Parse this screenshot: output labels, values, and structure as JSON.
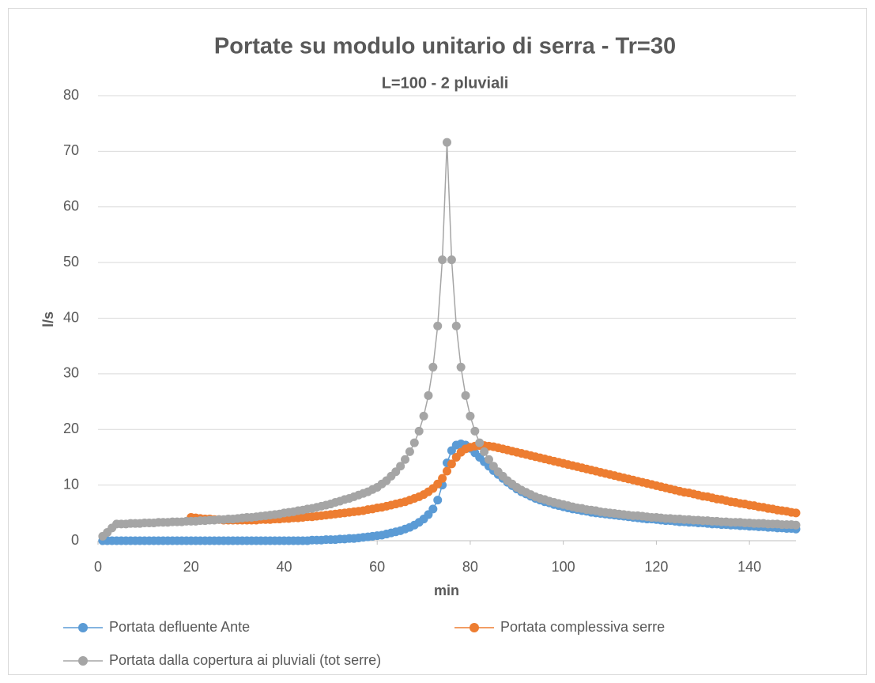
{
  "chart_data": {
    "type": "line",
    "title": "Portate su modulo unitario di serra - Tr=30",
    "subtitle": "L=100 - 2 pluviali",
    "x_label": "min",
    "y_label": "l/s",
    "x": [
      1,
      2,
      3,
      4,
      5,
      6,
      7,
      8,
      9,
      10,
      11,
      12,
      13,
      14,
      15,
      16,
      17,
      18,
      19,
      20,
      21,
      22,
      23,
      24,
      25,
      26,
      27,
      28,
      29,
      30,
      31,
      32,
      33,
      34,
      35,
      36,
      37,
      38,
      39,
      40,
      41,
      42,
      43,
      44,
      45,
      46,
      47,
      48,
      49,
      50,
      51,
      52,
      53,
      54,
      55,
      56,
      57,
      58,
      59,
      60,
      61,
      62,
      63,
      64,
      65,
      66,
      67,
      68,
      69,
      70,
      71,
      72,
      73,
      74,
      75,
      76,
      77,
      78,
      79,
      80,
      81,
      82,
      83,
      84,
      85,
      86,
      87,
      88,
      89,
      90,
      91,
      92,
      93,
      94,
      95,
      96,
      97,
      98,
      99,
      100,
      101,
      102,
      103,
      104,
      105,
      106,
      107,
      108,
      109,
      110,
      111,
      112,
      113,
      114,
      115,
      116,
      117,
      118,
      119,
      120,
      121,
      122,
      123,
      124,
      125,
      126,
      127,
      128,
      129,
      130,
      131,
      132,
      133,
      134,
      135,
      136,
      137,
      138,
      139,
      140,
      141,
      142,
      143,
      144,
      145,
      146,
      147,
      148,
      149,
      150
    ],
    "series": [
      {
        "name": "Portata defluente Ante",
        "color": "#5b9bd5",
        "values": [
          0,
          0,
          0,
          0,
          0,
          0,
          0,
          0,
          0,
          0,
          0,
          0,
          0,
          0,
          0,
          0,
          0,
          0,
          0,
          0,
          0,
          0,
          0,
          0,
          0,
          0,
          0,
          0,
          0,
          0,
          0,
          0,
          0,
          0,
          0,
          0,
          0,
          0,
          0,
          0,
          0,
          0,
          0,
          0,
          0,
          0.1,
          0.1,
          0.1,
          0.2,
          0.2,
          0.2,
          0.3,
          0.3,
          0.4,
          0.4,
          0.5,
          0.6,
          0.7,
          0.8,
          0.9,
          1.0,
          1.2,
          1.4,
          1.6,
          1.8,
          2.1,
          2.4,
          2.8,
          3.3,
          3.9,
          4.7,
          5.7,
          7.3,
          10.0,
          14.0,
          16.2,
          17.2,
          17.4,
          17.2,
          16.6,
          15.8,
          15.0,
          14.2,
          13.4,
          12.6,
          11.9,
          11.2,
          10.5,
          9.9,
          9.3,
          8.8,
          8.4,
          8.0,
          7.6,
          7.3,
          7.0,
          6.8,
          6.5,
          6.3,
          6.1,
          5.9,
          5.7,
          5.6,
          5.4,
          5.3,
          5.1,
          5.0,
          4.9,
          4.8,
          4.7,
          4.6,
          4.5,
          4.4,
          4.3,
          4.2,
          4.1,
          4.0,
          3.9,
          3.9,
          3.8,
          3.7,
          3.6,
          3.6,
          3.5,
          3.4,
          3.4,
          3.3,
          3.3,
          3.2,
          3.2,
          3.1,
          3.0,
          3.0,
          2.9,
          2.9,
          2.8,
          2.8,
          2.7,
          2.7,
          2.6,
          2.6,
          2.5,
          2.5,
          2.4,
          2.4,
          2.3,
          2.3,
          2.2,
          2.2,
          2.1
        ]
      },
      {
        "name": "Portata complessiva serre",
        "color": "#ed7d31",
        "values": [
          null,
          null,
          null,
          null,
          null,
          null,
          null,
          null,
          null,
          null,
          null,
          null,
          null,
          null,
          null,
          null,
          null,
          null,
          null,
          4.2,
          4.1,
          4.0,
          3.9,
          3.9,
          3.8,
          3.8,
          3.7,
          3.7,
          3.7,
          3.7,
          3.7,
          3.7,
          3.7,
          3.7,
          3.8,
          3.8,
          3.8,
          3.9,
          3.9,
          4.0,
          4.0,
          4.1,
          4.1,
          4.2,
          4.3,
          4.3,
          4.4,
          4.5,
          4.6,
          4.7,
          4.8,
          4.9,
          5.0,
          5.1,
          5.2,
          5.3,
          5.4,
          5.6,
          5.7,
          5.9,
          6.0,
          6.2,
          6.4,
          6.6,
          6.8,
          7.0,
          7.3,
          7.6,
          7.9,
          8.3,
          8.8,
          9.4,
          10.2,
          11.2,
          12.5,
          13.8,
          15.0,
          15.9,
          16.5,
          16.8,
          17.0,
          17.1,
          17.1,
          17.0,
          16.9,
          16.7,
          16.5,
          16.3,
          16.1,
          15.9,
          15.7,
          15.5,
          15.3,
          15.1,
          14.9,
          14.7,
          14.5,
          14.3,
          14.1,
          13.9,
          13.7,
          13.5,
          13.3,
          13.1,
          12.9,
          12.7,
          12.5,
          12.3,
          12.1,
          11.9,
          11.7,
          11.5,
          11.3,
          11.1,
          10.9,
          10.7,
          10.5,
          10.3,
          10.1,
          9.9,
          9.7,
          9.5,
          9.3,
          9.1,
          8.9,
          8.7,
          8.6,
          8.4,
          8.2,
          8.0,
          7.9,
          7.7,
          7.5,
          7.4,
          7.2,
          7.0,
          6.9,
          6.7,
          6.6,
          6.4,
          6.3,
          6.1,
          6.0,
          5.8,
          5.7,
          5.5,
          5.4,
          5.3,
          5.1,
          5.0
        ]
      },
      {
        "name": "Portata dalla copertura ai pluviali (tot serre)",
        "color": "#a5a5a5",
        "values": [
          0.8,
          1.5,
          2.3,
          3.0,
          3.0,
          3.0,
          3.1,
          3.1,
          3.1,
          3.2,
          3.2,
          3.2,
          3.3,
          3.3,
          3.3,
          3.4,
          3.4,
          3.4,
          3.5,
          3.5,
          3.5,
          3.6,
          3.6,
          3.7,
          3.7,
          3.8,
          3.8,
          3.9,
          3.9,
          4.0,
          4.1,
          4.2,
          4.2,
          4.3,
          4.4,
          4.5,
          4.6,
          4.7,
          4.8,
          5.0,
          5.1,
          5.2,
          5.4,
          5.5,
          5.7,
          5.8,
          6.0,
          6.2,
          6.4,
          6.6,
          6.9,
          7.1,
          7.4,
          7.6,
          7.9,
          8.2,
          8.5,
          8.8,
          9.2,
          9.6,
          10.2,
          10.8,
          11.6,
          12.4,
          13.4,
          14.6,
          16.0,
          17.6,
          19.7,
          22.4,
          26.1,
          31.2,
          38.6,
          50.5,
          71.6,
          50.5,
          38.6,
          31.2,
          26.1,
          22.4,
          19.7,
          17.6,
          16.0,
          14.6,
          13.4,
          12.4,
          11.6,
          10.8,
          10.2,
          9.6,
          9.1,
          8.7,
          8.3,
          7.9,
          7.6,
          7.4,
          7.1,
          6.9,
          6.7,
          6.5,
          6.3,
          6.1,
          5.9,
          5.8,
          5.6,
          5.5,
          5.4,
          5.2,
          5.1,
          5.0,
          4.9,
          4.8,
          4.7,
          4.6,
          4.5,
          4.5,
          4.4,
          4.3,
          4.2,
          4.2,
          4.1,
          4.0,
          4.0,
          3.9,
          3.9,
          3.8,
          3.8,
          3.7,
          3.7,
          3.6,
          3.6,
          3.5,
          3.5,
          3.4,
          3.4,
          3.3,
          3.3,
          3.3,
          3.2,
          3.2,
          3.1,
          3.1,
          3.1,
          3.0,
          3.0,
          3.0,
          2.9,
          2.9,
          2.9,
          2.8
        ]
      }
    ],
    "xlim": [
      0,
      150
    ],
    "xticks": [
      0,
      20,
      40,
      60,
      80,
      100,
      120,
      140
    ],
    "ylim": [
      0,
      80
    ],
    "yticks": [
      0,
      10,
      20,
      30,
      40,
      50,
      60,
      70,
      80
    ],
    "grid": true,
    "legend": "bottom"
  }
}
